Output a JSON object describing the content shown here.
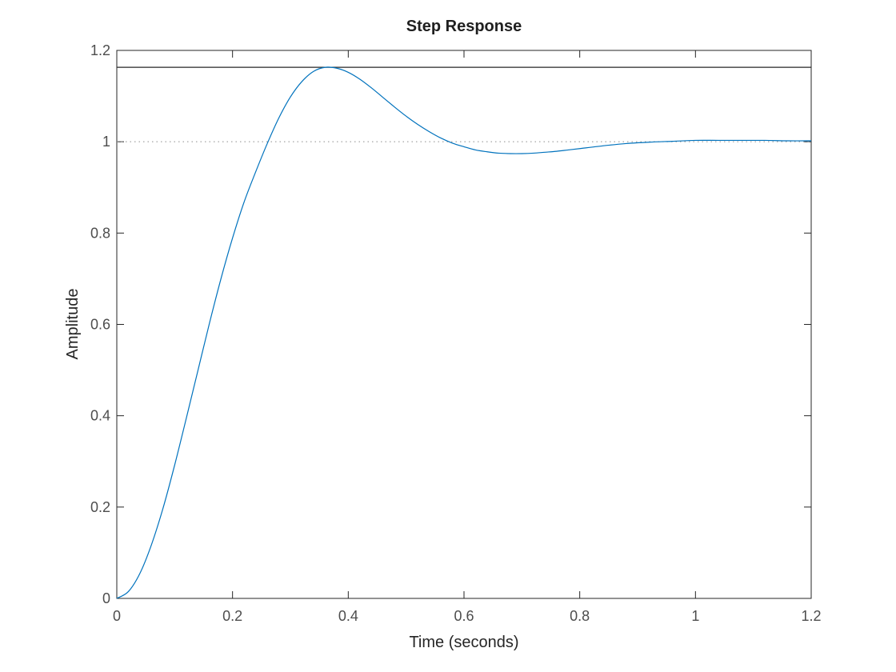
{
  "chart_data": {
    "type": "line",
    "title": "Step Response",
    "xlabel": "Time (seconds)",
    "ylabel": "Amplitude",
    "xlim": [
      0,
      1.2
    ],
    "ylim": [
      0,
      1.2
    ],
    "xticks": [
      "0",
      "0.2",
      "0.4",
      "0.6",
      "0.8",
      "1",
      "1.2"
    ],
    "yticks": [
      "0",
      "0.2",
      "0.4",
      "0.6",
      "0.8",
      "1",
      "1.2"
    ],
    "grid": false,
    "series": [
      {
        "color": "#0072bd",
        "x": [
          0,
          0.02,
          0.04,
          0.06,
          0.08,
          0.1,
          0.12,
          0.14,
          0.16,
          0.18,
          0.2,
          0.22,
          0.24,
          0.26,
          0.28,
          0.3,
          0.32,
          0.34,
          0.36,
          0.38,
          0.4,
          0.42,
          0.44,
          0.46,
          0.48,
          0.5,
          0.52,
          0.54,
          0.56,
          0.58,
          0.6,
          0.62,
          0.64,
          0.66,
          0.68,
          0.7,
          0.72,
          0.74,
          0.76,
          0.78,
          0.8,
          0.84,
          0.88,
          0.92,
          0.96,
          1.0,
          1.04,
          1.08,
          1.12,
          1.16,
          1.2
        ],
        "y": [
          0,
          0.015,
          0.055,
          0.118,
          0.198,
          0.292,
          0.394,
          0.498,
          0.602,
          0.7,
          0.789,
          0.868,
          0.934,
          0.996,
          1.052,
          1.098,
          1.132,
          1.154,
          1.163,
          1.161,
          1.152,
          1.137,
          1.118,
          1.097,
          1.076,
          1.056,
          1.038,
          1.022,
          1.008,
          0.997,
          0.989,
          0.982,
          0.978,
          0.975,
          0.974,
          0.974,
          0.975,
          0.977,
          0.979,
          0.982,
          0.985,
          0.991,
          0.996,
          0.999,
          1.001,
          1.003,
          1.003,
          1.003,
          1.003,
          1.002,
          1.002
        ]
      }
    ],
    "reference_lines": [
      {
        "y": 1.163,
        "style": "solid",
        "color": "#262626"
      },
      {
        "y": 1.0,
        "style": "dotted",
        "color": "#8c8c8c"
      }
    ]
  }
}
